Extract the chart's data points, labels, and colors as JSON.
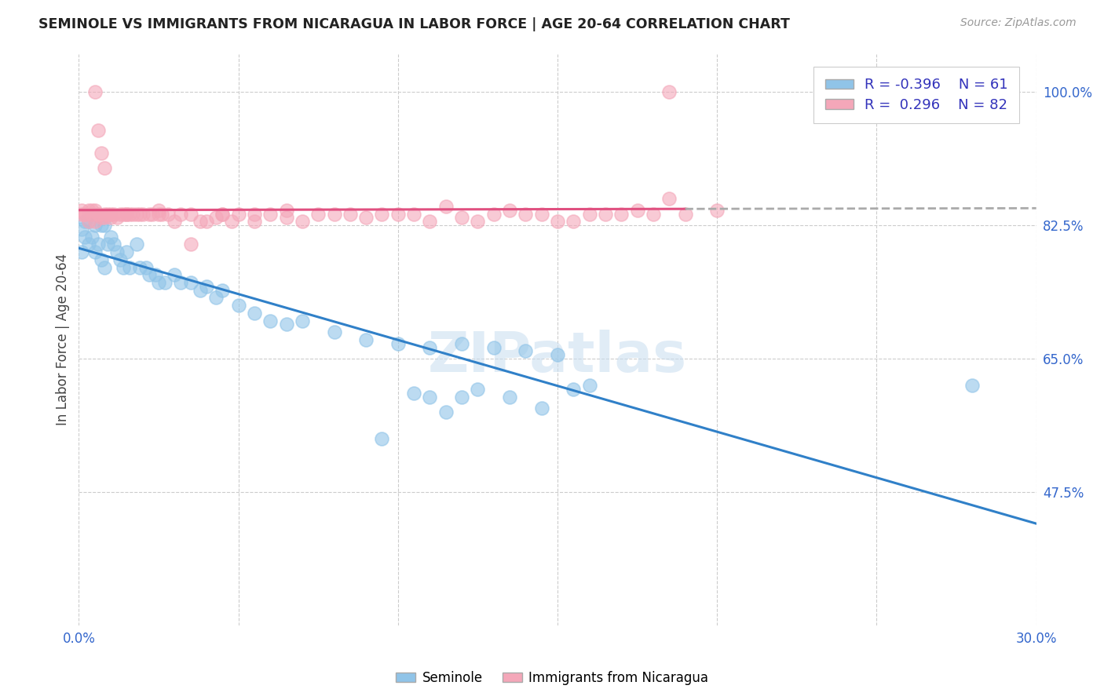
{
  "title": "SEMINOLE VS IMMIGRANTS FROM NICARAGUA IN LABOR FORCE | AGE 20-64 CORRELATION CHART",
  "source": "Source: ZipAtlas.com",
  "ylabel": "In Labor Force | Age 20-64",
  "xlim": [
    0.0,
    0.3
  ],
  "ylim": [
    0.3,
    1.05
  ],
  "xticks": [
    0.0,
    0.05,
    0.1,
    0.15,
    0.2,
    0.25,
    0.3
  ],
  "xticklabels": [
    "0.0%",
    "",
    "",
    "",
    "",
    "",
    "30.0%"
  ],
  "yticks_right": [
    0.475,
    0.65,
    0.825,
    1.0
  ],
  "ytick_right_labels": [
    "47.5%",
    "65.0%",
    "82.5%",
    "100.0%"
  ],
  "blue_color": "#90c4e8",
  "pink_color": "#f4a7b9",
  "blue_line_color": "#3080c8",
  "pink_line_color": "#e05080",
  "legend_R_blue": "-0.396",
  "legend_N_blue": "61",
  "legend_R_pink": "0.296",
  "legend_N_pink": "82",
  "watermark": "ZIPatlas",
  "background_color": "#ffffff",
  "grid_color": "#cccccc",
  "blue_x": [
    0.001,
    0.001,
    0.002,
    0.002,
    0.003,
    0.003,
    0.004,
    0.004,
    0.005,
    0.005,
    0.006,
    0.007,
    0.007,
    0.008,
    0.008,
    0.009,
    0.01,
    0.011,
    0.012,
    0.013,
    0.014,
    0.015,
    0.016,
    0.018,
    0.019,
    0.021,
    0.022,
    0.024,
    0.025,
    0.027,
    0.03,
    0.032,
    0.035,
    0.038,
    0.04,
    0.043,
    0.045,
    0.05,
    0.055,
    0.06,
    0.065,
    0.07,
    0.08,
    0.09,
    0.1,
    0.11,
    0.12,
    0.13,
    0.14,
    0.15,
    0.115,
    0.125,
    0.135,
    0.145,
    0.155,
    0.16,
    0.12,
    0.11,
    0.105,
    0.28,
    0.095
  ],
  "blue_y": [
    0.82,
    0.79,
    0.81,
    0.83,
    0.83,
    0.8,
    0.84,
    0.81,
    0.825,
    0.79,
    0.8,
    0.825,
    0.78,
    0.825,
    0.77,
    0.8,
    0.81,
    0.8,
    0.79,
    0.78,
    0.77,
    0.79,
    0.77,
    0.8,
    0.77,
    0.77,
    0.76,
    0.76,
    0.75,
    0.75,
    0.76,
    0.75,
    0.75,
    0.74,
    0.745,
    0.73,
    0.74,
    0.72,
    0.71,
    0.7,
    0.695,
    0.7,
    0.685,
    0.675,
    0.67,
    0.665,
    0.67,
    0.665,
    0.66,
    0.655,
    0.58,
    0.61,
    0.6,
    0.585,
    0.61,
    0.615,
    0.6,
    0.6,
    0.605,
    0.615,
    0.545
  ],
  "pink_x": [
    0.001,
    0.001,
    0.002,
    0.002,
    0.003,
    0.003,
    0.004,
    0.004,
    0.005,
    0.005,
    0.006,
    0.006,
    0.007,
    0.008,
    0.008,
    0.009,
    0.01,
    0.01,
    0.011,
    0.012,
    0.013,
    0.014,
    0.015,
    0.016,
    0.017,
    0.018,
    0.019,
    0.02,
    0.022,
    0.023,
    0.025,
    0.026,
    0.028,
    0.03,
    0.032,
    0.035,
    0.038,
    0.04,
    0.043,
    0.045,
    0.048,
    0.05,
    0.055,
    0.06,
    0.065,
    0.07,
    0.08,
    0.09,
    0.1,
    0.11,
    0.12,
    0.13,
    0.14,
    0.15,
    0.16,
    0.17,
    0.18,
    0.19,
    0.2,
    0.185,
    0.175,
    0.165,
    0.155,
    0.145,
    0.135,
    0.125,
    0.115,
    0.105,
    0.095,
    0.085,
    0.075,
    0.065,
    0.055,
    0.045,
    0.035,
    0.025,
    0.015,
    0.008,
    0.007,
    0.006,
    0.005,
    0.185
  ],
  "pink_y": [
    0.84,
    0.845,
    0.84,
    0.84,
    0.845,
    0.83,
    0.845,
    0.84,
    0.845,
    0.83,
    0.84,
    0.84,
    0.835,
    0.84,
    0.835,
    0.84,
    0.84,
    0.835,
    0.84,
    0.835,
    0.84,
    0.84,
    0.84,
    0.84,
    0.84,
    0.84,
    0.84,
    0.84,
    0.84,
    0.84,
    0.84,
    0.84,
    0.84,
    0.83,
    0.84,
    0.84,
    0.83,
    0.83,
    0.835,
    0.84,
    0.83,
    0.84,
    0.83,
    0.84,
    0.835,
    0.83,
    0.84,
    0.835,
    0.84,
    0.83,
    0.835,
    0.84,
    0.84,
    0.83,
    0.84,
    0.84,
    0.84,
    0.84,
    0.845,
    0.86,
    0.845,
    0.84,
    0.83,
    0.84,
    0.845,
    0.83,
    0.85,
    0.84,
    0.84,
    0.84,
    0.84,
    0.845,
    0.84,
    0.84,
    0.8,
    0.845,
    0.84,
    0.9,
    0.92,
    0.95,
    1.0,
    1.0
  ]
}
